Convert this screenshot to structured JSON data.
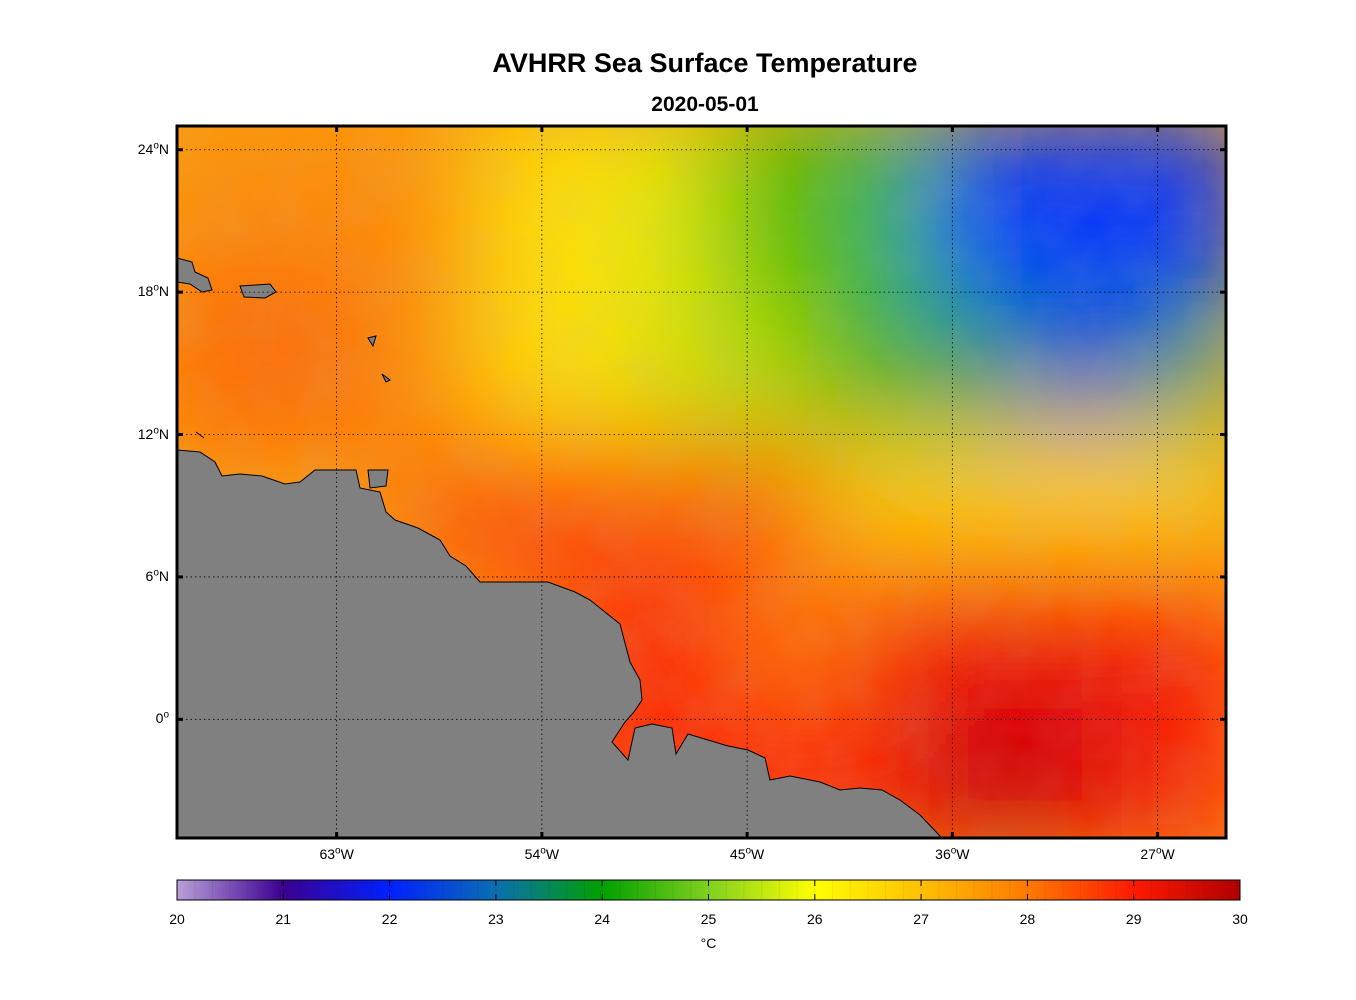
{
  "title": "AVHRR Sea Surface Temperature",
  "subtitle": "2020-05-01",
  "map": {
    "lon_range": [
      -70,
      -24
    ],
    "lat_range": [
      -5,
      25
    ],
    "lat_ticks": [
      {
        "value": 24,
        "label": "24",
        "hemi": "N"
      },
      {
        "value": 18,
        "label": "18",
        "hemi": "N"
      },
      {
        "value": 12,
        "label": "12",
        "hemi": "N"
      },
      {
        "value": 6,
        "label": "6",
        "hemi": "N"
      },
      {
        "value": 0,
        "label": "0",
        "hemi": ""
      }
    ],
    "lon_ticks": [
      {
        "value": -63,
        "label": "63",
        "hemi": "W"
      },
      {
        "value": -54,
        "label": "54",
        "hemi": "W"
      },
      {
        "value": -45,
        "label": "45",
        "hemi": "W"
      },
      {
        "value": -36,
        "label": "36",
        "hemi": "W"
      },
      {
        "value": -27,
        "label": "27",
        "hemi": "W"
      }
    ],
    "land_color": "#808080"
  },
  "colorbar": {
    "min": 20,
    "max": 30,
    "ticks": [
      "20",
      "21",
      "22",
      "23",
      "24",
      "25",
      "26",
      "27",
      "28",
      "29",
      "30"
    ],
    "unit": "°C",
    "stops": [
      {
        "v": 20,
        "c": "#b8a0d8"
      },
      {
        "v": 21,
        "c": "#3b0090"
      },
      {
        "v": 22,
        "c": "#0020ff"
      },
      {
        "v": 23,
        "c": "#0a6fb0"
      },
      {
        "v": 24,
        "c": "#00a000"
      },
      {
        "v": 25,
        "c": "#80d020"
      },
      {
        "v": 26,
        "c": "#ffff00"
      },
      {
        "v": 27,
        "c": "#ffc000"
      },
      {
        "v": 28,
        "c": "#ff7a00"
      },
      {
        "v": 29,
        "c": "#ff1a00"
      },
      {
        "v": 30,
        "c": "#b00000"
      }
    ]
  }
}
